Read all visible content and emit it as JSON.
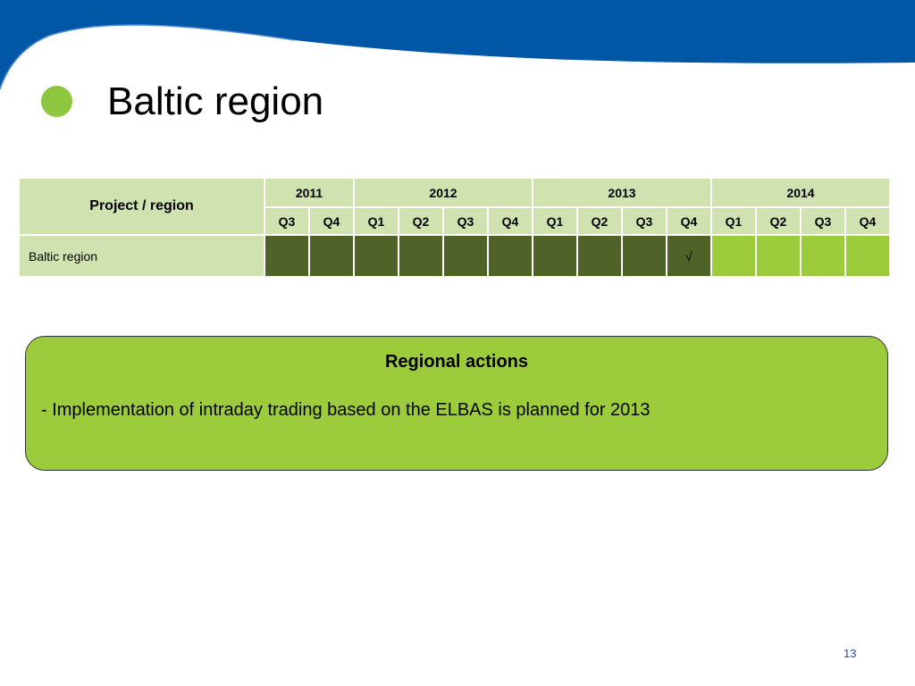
{
  "slide": {
    "title": "Baltic region",
    "page_number": "13"
  },
  "table": {
    "corner_header": "Project / region",
    "years": [
      {
        "label": "2011",
        "quarters": [
          "Q3",
          "Q4"
        ]
      },
      {
        "label": "2012",
        "quarters": [
          "Q1",
          "Q2",
          "Q3",
          "Q4"
        ]
      },
      {
        "label": "2013",
        "quarters": [
          "Q1",
          "Q2",
          "Q3",
          "Q4"
        ]
      },
      {
        "label": "2014",
        "quarters": [
          "Q1",
          "Q2",
          "Q3",
          "Q4"
        ]
      }
    ],
    "rows": [
      {
        "label": "Baltic region",
        "cells": [
          "",
          "",
          "",
          "",
          "",
          "",
          "",
          "",
          "",
          "√",
          "",
          "",
          "",
          ""
        ],
        "status": [
          "past",
          "past",
          "past",
          "past",
          "past",
          "past",
          "past",
          "past",
          "past",
          "past",
          "future",
          "future",
          "future",
          "future"
        ]
      }
    ]
  },
  "actions": {
    "title": "Regional actions",
    "item": "- Implementation of intraday trading based on the ELBAS is planned for 2013"
  },
  "colors": {
    "header_blue": "#0057a6",
    "bullet_green": "#8dc63f",
    "table_header": "#cfe2b0",
    "past_quarter": "#4f6228",
    "future_quarter": "#9ccb3b",
    "check_color": "#ffc000",
    "box_green": "#9ccb3b"
  }
}
